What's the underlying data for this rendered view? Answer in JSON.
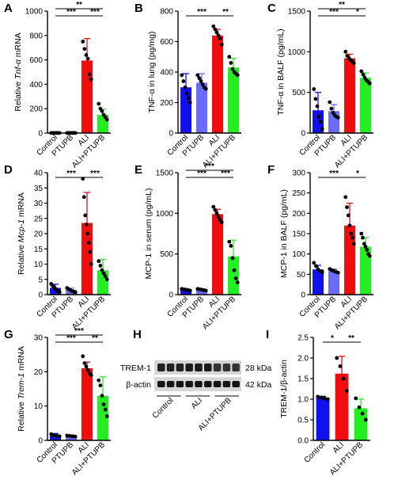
{
  "colors": {
    "Control": "#1111ee",
    "PTUPB": "#6b6bf5",
    "ALI": "#f00d0d",
    "ALI+PTUPB": "#22ee22",
    "error": "#000000",
    "dot": "#000000"
  },
  "chart_data": [
    {
      "panel": "A",
      "type": "bar",
      "categories": [
        "Control",
        "PTUPB",
        "ALI",
        "ALI+PTUPB"
      ],
      "values": [
        1,
        1,
        595,
        150
      ],
      "errors": [
        1,
        1,
        180,
        45
      ],
      "points": [
        [
          1,
          1,
          1,
          1,
          1,
          1
        ],
        [
          1,
          1,
          1,
          1,
          1,
          1
        ],
        [
          750,
          690,
          640,
          610,
          480,
          440
        ],
        [
          240,
          200,
          180,
          150,
          130,
          110
        ]
      ],
      "ylabel_pre": "Relative ",
      "ylabel_it": "Tnf-α",
      " ylabel_post": "",
      "ylabel_post": " mRNA",
      "ylim": [
        0,
        1000
      ],
      "yticks": [
        0,
        200,
        400,
        600,
        800,
        1000
      ],
      "brackets": [
        {
          "a": 0,
          "b": 2,
          "level": 0,
          "label": "***"
        },
        {
          "a": 0,
          "b": 3,
          "level": 1,
          "label": "**"
        },
        {
          "a": 2,
          "b": 3,
          "level": 0,
          "label": "***"
        }
      ]
    },
    {
      "panel": "B",
      "type": "bar",
      "categories": [
        "Control",
        "PTUPB",
        "ALI",
        "ALI+PTUPB"
      ],
      "values": [
        300,
        330,
        640,
        430
      ],
      "errors": [
        90,
        60,
        40,
        60
      ],
      "points": [
        [
          380,
          340,
          300,
          260,
          230,
          200
        ],
        [
          380,
          360,
          340,
          320,
          300,
          290
        ],
        [
          700,
          680,
          660,
          640,
          620,
          580
        ],
        [
          500,
          460,
          420,
          400,
          390,
          380
        ]
      ],
      "ylabel_pre": "TNF-α in lung (pg/mg)",
      "ylabel_it": "",
      "ylabel_post": "",
      "ylim": [
        0,
        800
      ],
      "yticks": [
        0,
        200,
        400,
        600,
        800
      ],
      "brackets": [
        {
          "a": 0,
          "b": 2,
          "level": 0,
          "label": "***"
        },
        {
          "a": 2,
          "b": 3,
          "level": 0,
          "label": "**"
        }
      ]
    },
    {
      "panel": "C",
      "type": "bar",
      "categories": [
        "Control",
        "PTUPB",
        "ALI",
        "ALI+PTUPB"
      ],
      "values": [
        280,
        270,
        920,
        680
      ],
      "errors": [
        220,
        80,
        50,
        60
      ],
      "points": [
        [
          540,
          420,
          330,
          200,
          140,
          50
        ],
        [
          380,
          300,
          250,
          220,
          200,
          190
        ],
        [
          1000,
          950,
          920,
          900,
          880,
          860
        ],
        [
          760,
          720,
          680,
          650,
          630,
          610
        ]
      ],
      "ylabel_pre": "TNF-α in BALF (pg/mL)",
      "ylabel_it": "",
      "ylabel_post": "",
      "ylim": [
        0,
        1500
      ],
      "yticks": [
        0,
        500,
        1000,
        1500
      ],
      "brackets": [
        {
          "a": 0,
          "b": 2,
          "level": 0,
          "label": "***"
        },
        {
          "a": 0,
          "b": 3,
          "level": 1,
          "label": "**"
        },
        {
          "a": 2,
          "b": 3,
          "level": 0,
          "label": "*"
        }
      ]
    },
    {
      "panel": "D",
      "type": "bar",
      "categories": [
        "Control",
        "PTUPB",
        "ALI",
        "ALI+PTUPB"
      ],
      "values": [
        2.2,
        1.5,
        23.5,
        8
      ],
      "errors": [
        1.2,
        0.6,
        10,
        3.5
      ],
      "points": [
        [
          3.5,
          2.8,
          2.2,
          1.8,
          1.2,
          0.8
        ],
        [
          2.2,
          1.8,
          1.5,
          1.2,
          1.0,
          0.8
        ],
        [
          38,
          32,
          26,
          23,
          20,
          17,
          14,
          10
        ],
        [
          11,
          9.5,
          8,
          7,
          6,
          5
        ]
      ],
      "ylabel_pre": "Relative ",
      "ylabel_it": "Mcp-1",
      "ylabel_post": " mRNA",
      "ylim": [
        0,
        40
      ],
      "yticks": [
        0,
        5,
        10,
        15,
        20,
        25,
        30,
        35,
        40
      ],
      "brackets": [
        {
          "a": 0,
          "b": 2,
          "level": 0,
          "label": "***"
        },
        {
          "a": 2,
          "b": 3,
          "level": 0,
          "label": "***"
        }
      ]
    },
    {
      "panel": "E",
      "type": "bar",
      "categories": [
        "Control",
        "PTUPB",
        "ALI",
        "ALI+PTUPB"
      ],
      "values": [
        60,
        60,
        990,
        470
      ],
      "errors": [
        10,
        10,
        60,
        200
      ],
      "points": [
        [
          70,
          65,
          60,
          55,
          50
        ],
        [
          70,
          65,
          60,
          55,
          50
        ],
        [
          1080,
          1040,
          1000,
          960,
          920,
          890
        ],
        [
          650,
          600,
          450,
          300,
          200,
          150
        ]
      ],
      "ylabel_pre": "MCP-1 in serum (pg/mL)",
      "ylabel_it": "",
      "ylabel_post": "",
      "ylim": [
        0,
        1500
      ],
      "yticks": [
        0,
        500,
        1000,
        1500
      ],
      "brackets": [
        {
          "a": 0,
          "b": 2,
          "level": 0,
          "label": "***"
        },
        {
          "a": 0,
          "b": 3,
          "level": 1,
          "label": "***"
        },
        {
          "a": 2,
          "b": 3,
          "level": 0,
          "label": "***"
        }
      ]
    },
    {
      "panel": "F",
      "type": "bar",
      "categories": [
        "Control",
        "PTUPB",
        "ALI",
        "ALI+PTUPB"
      ],
      "values": [
        62,
        58,
        170,
        118
      ],
      "errors": [
        10,
        5,
        55,
        22
      ],
      "points": [
        [
          78,
          70,
          62,
          58,
          55
        ],
        [
          63,
          60,
          58,
          56,
          54
        ],
        [
          240,
          215,
          195,
          170,
          150,
          140,
          125
        ],
        [
          150,
          140,
          125,
          118,
          110,
          100,
          95
        ]
      ],
      "ylabel_pre": "MCP-1 in BALF (pg/mL)",
      "ylabel_it": "",
      "ylabel_post": "",
      "ylim": [
        0,
        300
      ],
      "yticks": [
        0,
        50,
        100,
        150,
        200,
        250,
        300
      ],
      "brackets": [
        {
          "a": 0,
          "b": 2,
          "level": 0,
          "label": "***"
        },
        {
          "a": 2,
          "b": 3,
          "level": 0,
          "label": "*"
        }
      ]
    },
    {
      "panel": "G",
      "type": "bar",
      "categories": [
        "Control",
        "PTUPB",
        "ALI",
        "ALI+PTUPB"
      ],
      "values": [
        1.5,
        1.2,
        21,
        13
      ],
      "errors": [
        0.5,
        0.3,
        1.8,
        5.5
      ],
      "points": [
        [
          1.8,
          1.5,
          1.3,
          1.2
        ],
        [
          1.4,
          1.3,
          1.2,
          1.1
        ],
        [
          24.5,
          22.5,
          21.5,
          20.5,
          19.5,
          19
        ],
        [
          17.5,
          16,
          13,
          10.5,
          9,
          7
        ]
      ],
      "ylabel_pre": "Relative ",
      "ylabel_it": "Trem-1",
      "ylabel_post": " mRNA",
      "ylim": [
        0,
        30
      ],
      "yticks": [
        0,
        10,
        20,
        30
      ],
      "brackets": [
        {
          "a": 0,
          "b": 2,
          "level": 0,
          "label": "***"
        },
        {
          "a": 0,
          "b": 3,
          "level": 1,
          "label": "***"
        },
        {
          "a": 2,
          "b": 3,
          "level": 0,
          "label": "**"
        }
      ]
    },
    {
      "panel": "I",
      "type": "bar",
      "categories": [
        "Control",
        "ALI",
        "ALI+PTUPB"
      ],
      "values": [
        1.03,
        1.62,
        0.78
      ],
      "errors": [
        0.04,
        0.42,
        0.22
      ],
      "points": [
        [
          1.06,
          1.04,
          1.02,
          1.0
        ],
        [
          2.0,
          1.8,
          1.5,
          1.2
        ],
        [
          1.02,
          0.8,
          0.65,
          0.5
        ]
      ],
      "ylabel_pre": "TREM-1/β-actin",
      "ylabel_it": "",
      "ylabel_post": "",
      "ylim": [
        0,
        2.5
      ],
      "yticks": [
        0.0,
        0.5,
        1.0,
        1.5,
        2.0,
        2.5
      ],
      "brackets": [
        {
          "a": 0,
          "b": 1,
          "level": 0,
          "label": "*"
        },
        {
          "a": 1,
          "b": 2,
          "level": 0,
          "label": "**"
        }
      ]
    }
  ],
  "blot": {
    "panel": "H",
    "rows": [
      {
        "label": "TREM-1",
        "size": "28 kDa"
      },
      {
        "label": "β-actin",
        "size": "42 kDa"
      }
    ],
    "groups": [
      "Control",
      "ALI",
      "ALI+PTUPB"
    ]
  }
}
